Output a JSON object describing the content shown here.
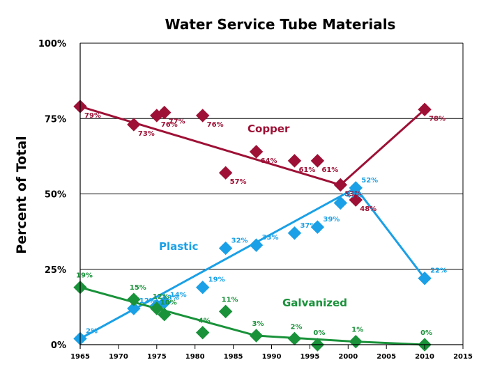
{
  "chart_data": {
    "type": "scatter",
    "title": "Water Service Tube Materials",
    "xlabel": "",
    "ylabel": "Percent of Total",
    "xlim": [
      1965,
      2015
    ],
    "ylim": [
      0,
      100
    ],
    "x_ticks": [
      "1965",
      "1970",
      "1975",
      "1980",
      "1985",
      "1990",
      "1995",
      "2000",
      "2005",
      "2010",
      "2015"
    ],
    "y_ticks": [
      "0%",
      "25%",
      "50%",
      "75%",
      "100%"
    ],
    "grid": "horizontal",
    "series": [
      {
        "name": "Copper",
        "color": "#9e1035",
        "points": [
          {
            "x": 1965,
            "y": 79,
            "label": "79%"
          },
          {
            "x": 1972,
            "y": 73,
            "label": "73%"
          },
          {
            "x": 1975,
            "y": 76,
            "label": "76%"
          },
          {
            "x": 1976,
            "y": 77,
            "label": "77%"
          },
          {
            "x": 1981,
            "y": 76,
            "label": "76%"
          },
          {
            "x": 1984,
            "y": 57,
            "label": "57%"
          },
          {
            "x": 1988,
            "y": 64,
            "label": "64%"
          },
          {
            "x": 1993,
            "y": 61,
            "label": "61%"
          },
          {
            "x": 1996,
            "y": 61,
            "label": "61%"
          },
          {
            "x": 1999,
            "y": 53,
            "label": "53%"
          },
          {
            "x": 2001,
            "y": 48,
            "label": "48%"
          },
          {
            "x": 2010,
            "y": 78,
            "label": "78%"
          }
        ],
        "trend": [
          {
            "x": 1965,
            "y": 79
          },
          {
            "x": 1999,
            "y": 53
          },
          {
            "x": 2010,
            "y": 78
          }
        ]
      },
      {
        "name": "Plastic",
        "color": "#1aa0e6",
        "points": [
          {
            "x": 1965,
            "y": 2,
            "label": "2%"
          },
          {
            "x": 1972,
            "y": 12,
            "label": "12%"
          },
          {
            "x": 1975,
            "y": 13,
            "label": "13%"
          },
          {
            "x": 1976,
            "y": 14,
            "label": "14%"
          },
          {
            "x": 1981,
            "y": 19,
            "label": "19%"
          },
          {
            "x": 1984,
            "y": 32,
            "label": "32%"
          },
          {
            "x": 1988,
            "y": 33,
            "label": "33%"
          },
          {
            "x": 1993,
            "y": 37,
            "label": "37%"
          },
          {
            "x": 1996,
            "y": 39,
            "label": "39%"
          },
          {
            "x": 1999,
            "y": 47,
            "label": "47%"
          },
          {
            "x": 2001,
            "y": 52,
            "label": "52%"
          },
          {
            "x": 2010,
            "y": 22,
            "label": "22%"
          }
        ],
        "trend": [
          {
            "x": 1965,
            "y": 2
          },
          {
            "x": 2001,
            "y": 52
          },
          {
            "x": 2010,
            "y": 22
          }
        ]
      },
      {
        "name": "Galvanized",
        "color": "#19923a",
        "points": [
          {
            "x": 1965,
            "y": 19,
            "label": "19%"
          },
          {
            "x": 1972,
            "y": 15,
            "label": "15%"
          },
          {
            "x": 1975,
            "y": 12,
            "label": "12%"
          },
          {
            "x": 1976,
            "y": 10,
            "label": "10%"
          },
          {
            "x": 1981,
            "y": 4,
            "label": "4%"
          },
          {
            "x": 1984,
            "y": 11,
            "label": "11%"
          },
          {
            "x": 1988,
            "y": 3,
            "label": "3%"
          },
          {
            "x": 1993,
            "y": 2,
            "label": "2%"
          },
          {
            "x": 1996,
            "y": 0,
            "label": "0%"
          },
          {
            "x": 2001,
            "y": 1,
            "label": "1%"
          },
          {
            "x": 2010,
            "y": 0,
            "label": "0%"
          }
        ],
        "trend": [
          {
            "x": 1965,
            "y": 19
          },
          {
            "x": 1975,
            "y": 12
          },
          {
            "x": 1988,
            "y": 3
          },
          {
            "x": 2001,
            "y": 1
          },
          {
            "x": 2010,
            "y": 0
          }
        ]
      }
    ]
  }
}
